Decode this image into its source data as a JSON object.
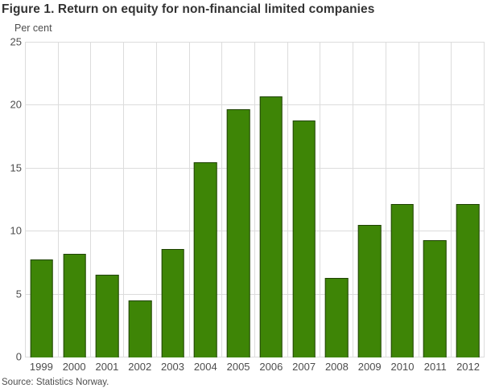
{
  "figure": {
    "title": "Figure 1. Return on equity for non-financial limited companies",
    "source": "Source: Statistics Norway."
  },
  "chart_data": {
    "type": "bar",
    "title": "Figure 1. Return on equity for non-financial limited companies",
    "ylabel": "Per cent",
    "xlabel": "",
    "categories": [
      "1999",
      "2000",
      "2001",
      "2002",
      "2003",
      "2004",
      "2005",
      "2006",
      "2007",
      "2008",
      "2009",
      "2010",
      "2011",
      "2012"
    ],
    "values": [
      7.8,
      8.2,
      6.6,
      4.5,
      8.6,
      15.5,
      19.7,
      20.7,
      18.8,
      6.3,
      10.5,
      12.2,
      9.3,
      12.2
    ],
    "ylim": [
      0,
      25
    ],
    "yticks": [
      0,
      5,
      10,
      15,
      20,
      25
    ],
    "grid": true,
    "legend_position": "none",
    "source": "Source: Statistics Norway.",
    "colors": {
      "bar_fill": "#3e8506",
      "bar_border": "rgba(0,0,0,0.5)",
      "grid": "#dcdcdc",
      "title_text": "#333333",
      "axis_text": "#4d4d4d"
    }
  }
}
